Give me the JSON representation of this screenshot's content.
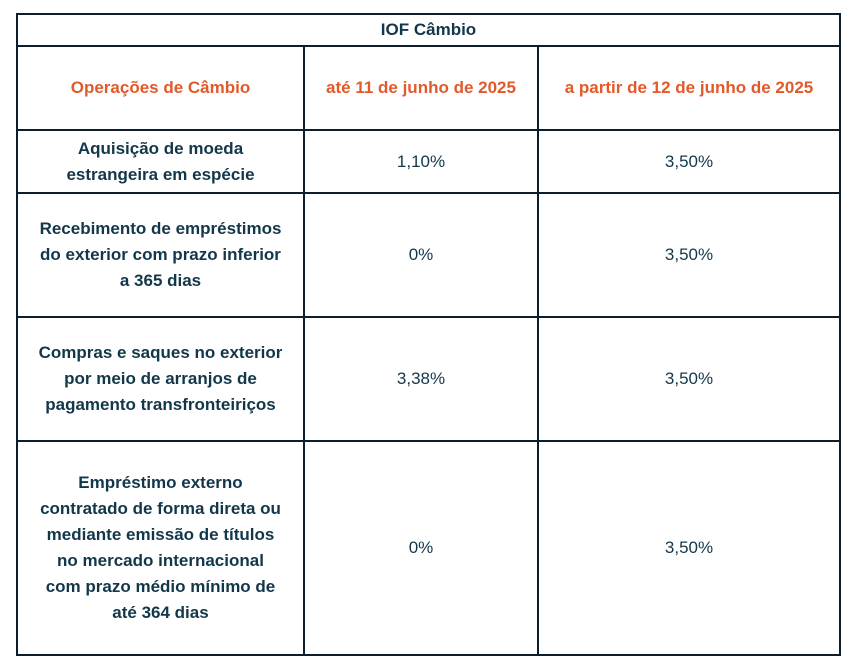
{
  "table": {
    "title": "IOF Câmbio",
    "headers": {
      "operation": "Operações de Câmbio",
      "until": "até 11 de junho de 2025",
      "from": "a partir de 12 de junho de 2025"
    },
    "rows": [
      {
        "operation_lines": [
          "Aquisição de moeda",
          "estrangeira em espécie"
        ],
        "until": "1,10%",
        "from": "3,50%"
      },
      {
        "operation_lines": [
          "Recebimento de empréstimos",
          "do exterior com prazo inferior",
          "a 365 dias"
        ],
        "until": "0%",
        "from": "3,50%"
      },
      {
        "operation_lines": [
          "Compras e saques no exterior",
          "por meio de arranjos de",
          "pagamento transfronteiriços"
        ],
        "until": "3,38%",
        "from": "3,50%"
      },
      {
        "operation_lines": [
          "Empréstimo externo",
          "contratado de forma direta ou",
          "mediante emissão de títulos",
          "no mercado internacional",
          "com prazo médio mínimo de",
          "até 364 dias"
        ],
        "until": "0%",
        "from": "3,50%"
      }
    ]
  },
  "colors": {
    "header_text": "#e2592a",
    "body_text": "#13374a",
    "border": "#0c1d2b",
    "background": "#ffffff"
  }
}
